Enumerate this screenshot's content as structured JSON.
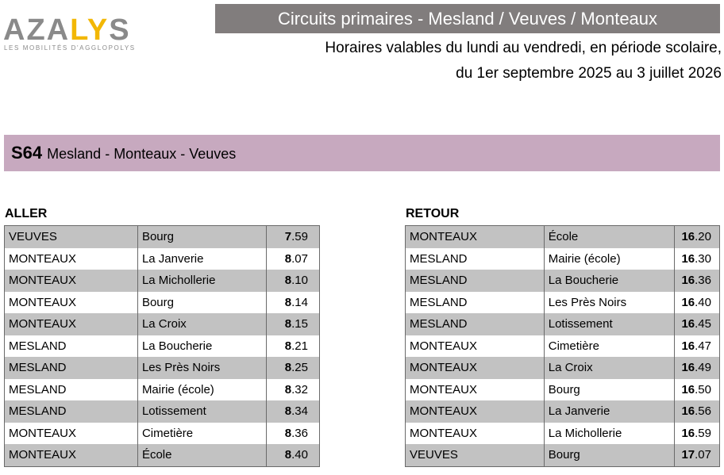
{
  "logo": {
    "word_a": "AZA",
    "word_b": "LY",
    "word_c": "S",
    "tagline": "LES MOBILITÉS D'AGGLOPOLYS"
  },
  "header": {
    "title": "Circuits primaires - Mesland / Veuves / Monteaux",
    "subtitle_line1": "Horaires valables du lundi au vendredi, en période scolaire,",
    "subtitle_line2": "du 1er septembre 2025 au 3 juillet 2026"
  },
  "route": {
    "code": "S64",
    "name": "Mesland - Monteaux - Veuves"
  },
  "aller": {
    "label": "ALLER",
    "rows": [
      {
        "commune": "VEUVES",
        "arret": "Bourg",
        "h": "7",
        "m": ".59"
      },
      {
        "commune": "MONTEAUX",
        "arret": "La Janverie",
        "h": "8",
        "m": ".07"
      },
      {
        "commune": "MONTEAUX",
        "arret": "La Michollerie",
        "h": "8",
        "m": ".10"
      },
      {
        "commune": "MONTEAUX",
        "arret": "Bourg",
        "h": "8",
        "m": ".14"
      },
      {
        "commune": "MONTEAUX",
        "arret": "La Croix",
        "h": "8",
        "m": ".15"
      },
      {
        "commune": "MESLAND",
        "arret": "La Boucherie",
        "h": "8",
        "m": ".21"
      },
      {
        "commune": "MESLAND",
        "arret": "Les Près Noirs",
        "h": "8",
        "m": ".25"
      },
      {
        "commune": "MESLAND",
        "arret": "Mairie (école)",
        "h": "8",
        "m": ".32"
      },
      {
        "commune": "MESLAND",
        "arret": "Lotissement",
        "h": "8",
        "m": ".34"
      },
      {
        "commune": "MONTEAUX",
        "arret": "Cimetière",
        "h": "8",
        "m": ".36"
      },
      {
        "commune": "MONTEAUX",
        "arret": "École",
        "h": "8",
        "m": ".40"
      }
    ]
  },
  "retour": {
    "label": "RETOUR",
    "rows": [
      {
        "commune": "MONTEAUX",
        "arret": "École",
        "h": "16",
        "m": ".20"
      },
      {
        "commune": "MESLAND",
        "arret": "Mairie (école)",
        "h": "16",
        "m": ".30"
      },
      {
        "commune": "MESLAND",
        "arret": "La Boucherie",
        "h": "16",
        "m": ".36"
      },
      {
        "commune": "MESLAND",
        "arret": "Les Près Noirs",
        "h": "16",
        "m": ".40"
      },
      {
        "commune": "MESLAND",
        "arret": "Lotissement",
        "h": "16",
        "m": ".45"
      },
      {
        "commune": "MONTEAUX",
        "arret": "Cimetière",
        "h": "16",
        "m": ".47"
      },
      {
        "commune": "MONTEAUX",
        "arret": "La Croix",
        "h": "16",
        "m": ".49"
      },
      {
        "commune": "MONTEAUX",
        "arret": "Bourg",
        "h": "16",
        "m": ".50"
      },
      {
        "commune": "MONTEAUX",
        "arret": "La Janverie",
        "h": "16",
        "m": ".56"
      },
      {
        "commune": "MONTEAUX",
        "arret": "La Michollerie",
        "h": "16",
        "m": ".59"
      },
      {
        "commune": "VEUVES",
        "arret": "Bourg",
        "h": "17",
        "m": ".07"
      }
    ]
  },
  "colors": {
    "title_bar": "#817d7d",
    "route_bar": "#c7a9bf",
    "row_shade": "#c2c2c2",
    "logo_grey": "#8a8a8a",
    "logo_accent": "#f2b705"
  }
}
